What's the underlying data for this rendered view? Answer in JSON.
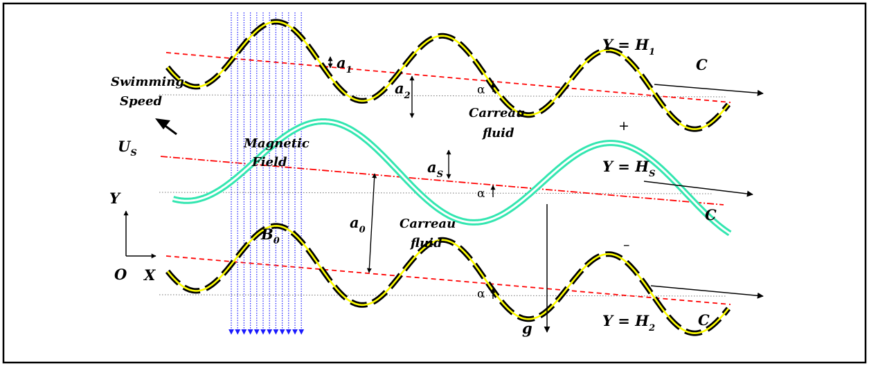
{
  "labels": {
    "swimming": "Swimming",
    "speed": "Speed",
    "us_main": "U",
    "us_sub": "S",
    "magnetic": "Magnetic",
    "field": "Field",
    "b0_main": "B",
    "b0_sub": "0",
    "axis_y": "Y",
    "axis_o": "O",
    "axis_x": "X",
    "a1_main": "a",
    "a1_sub": "1",
    "a2_main": "a",
    "a2_sub": "2",
    "as_main": "a",
    "as_sub": "S",
    "a0_main": "a",
    "a0_sub": "0",
    "alpha": "α",
    "carreau": "Carreau",
    "fluid": "fluid",
    "y_eq_h1_main": "Y = H",
    "y_eq_h1_sub": "1",
    "y_eq_hs_main": "Y = H",
    "y_eq_hs_sub": "S",
    "y_eq_h2_main": "Y = H",
    "y_eq_h2_sub": "2",
    "wave_c": "C",
    "plus": "+",
    "minus": "–",
    "gravity": "g"
  },
  "colors": {
    "wall_dash": "#000000",
    "wall_core": "#ffff00",
    "sheet": "#33e6b0",
    "centerline": "#ff0000",
    "field_lines": "#1a1aff",
    "reference": "#707070",
    "frame": "#000000"
  }
}
